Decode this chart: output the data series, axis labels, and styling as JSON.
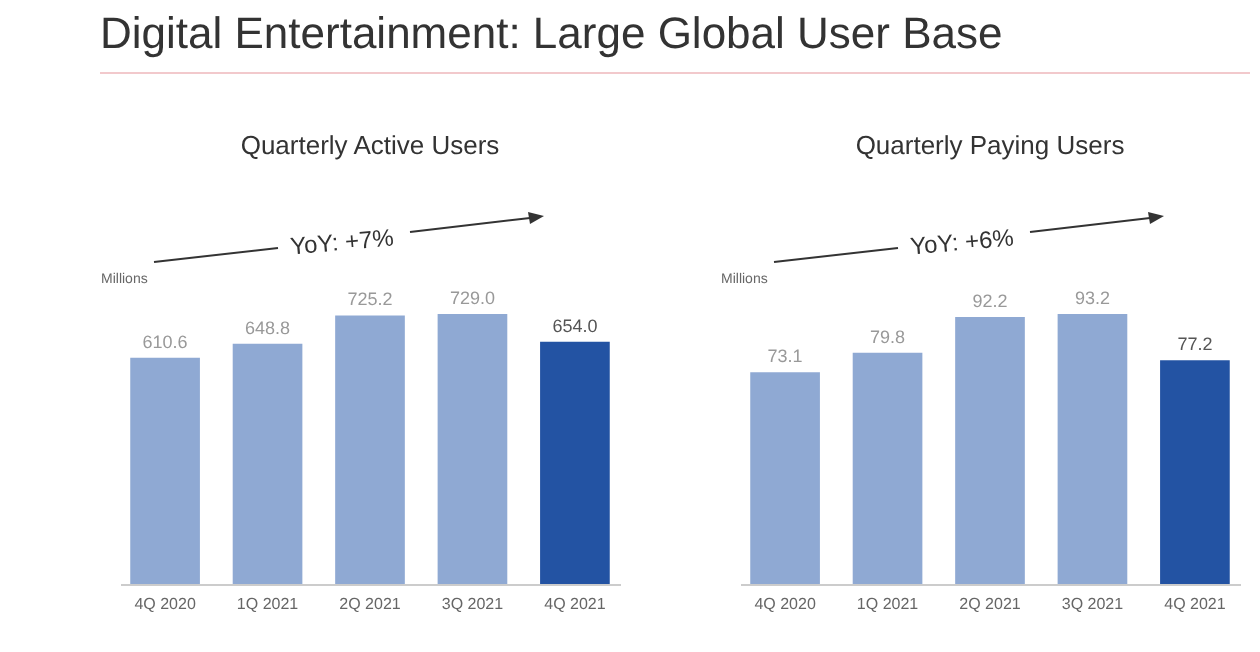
{
  "chart_data": [
    {
      "type": "other",
      "title": "Digital Entertainment: Large Global User Base"
    },
    {
      "type": "bar",
      "title": "Quarterly Active Users",
      "ylabel": "Millions",
      "annotations": [
        "YoY: +7%"
      ],
      "categories": [
        "4Q 2020",
        "1Q 2021",
        "2Q 2021",
        "3Q 2021",
        "4Q 2021"
      ],
      "values": [
        610.6,
        648.8,
        725.2,
        729.0,
        654.0
      ],
      "value_labels": [
        "610.6",
        "648.8",
        "725.2",
        "729.0",
        "654.0"
      ],
      "colors": [
        "#8fa9d3",
        "#8fa9d3",
        "#8fa9d3",
        "#8fa9d3",
        "#2353a3"
      ]
    },
    {
      "type": "bar",
      "title": "Quarterly Paying Users",
      "ylabel": "Millions",
      "annotations": [
        "YoY: +6%"
      ],
      "categories": [
        "4Q 2020",
        "1Q 2021",
        "2Q 2021",
        "3Q 2021",
        "4Q 2021"
      ],
      "values": [
        73.1,
        79.8,
        92.2,
        93.2,
        77.2
      ],
      "value_labels": [
        "73.1",
        "79.8",
        "92.2",
        "93.2",
        "77.2"
      ],
      "colors": [
        "#8fa9d3",
        "#8fa9d3",
        "#8fa9d3",
        "#8fa9d3",
        "#2353a3"
      ]
    }
  ]
}
